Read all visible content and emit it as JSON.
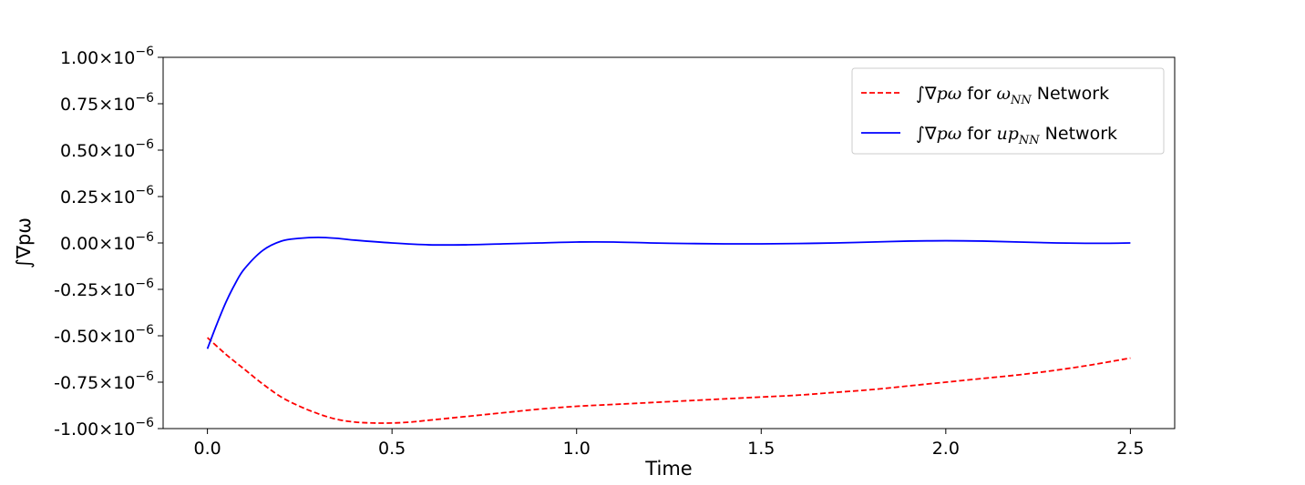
{
  "chart_data": {
    "type": "line",
    "title": "",
    "xlabel": "Time",
    "ylabel": "∫∇pω",
    "xlim": [
      -0.12,
      2.62
    ],
    "ylim": [
      -1.0,
      1.0
    ],
    "y_scale_note": "×10⁻⁶",
    "x_ticks": [
      0.0,
      0.5,
      1.0,
      1.5,
      2.0,
      2.5
    ],
    "x_tick_labels": [
      "0.0",
      "0.5",
      "1.0",
      "1.5",
      "2.0",
      "2.5"
    ],
    "y_ticks": [
      1.0,
      0.75,
      0.5,
      0.25,
      0.0,
      -0.25,
      -0.5,
      -0.75,
      -1.0
    ],
    "y_tick_labels": [
      {
        "base": "1.00×10",
        "exp": "−6"
      },
      {
        "base": "0.75×10",
        "exp": "−6"
      },
      {
        "base": "0.50×10",
        "exp": "−6"
      },
      {
        "base": "0.25×10",
        "exp": "−6"
      },
      {
        "base": "0.00×10",
        "exp": "−6"
      },
      {
        "base": "-0.25×10",
        "exp": "−6"
      },
      {
        "base": "-0.50×10",
        "exp": "−6"
      },
      {
        "base": "-0.75×10",
        "exp": "−6"
      },
      {
        "base": "-1.00×10",
        "exp": "−6"
      }
    ],
    "grid": false,
    "legend_position": "top-right",
    "series": [
      {
        "name": "∫∇pω for ωNN Network",
        "legend": {
          "pre": "∫∇",
          "math1": "pω",
          "mid": " for ",
          "math2": "ω",
          "sub": "NN",
          "post": " Network"
        },
        "color": "#ff0000",
        "dash": "dashed",
        "x": [
          0.0,
          0.05,
          0.1,
          0.15,
          0.2,
          0.25,
          0.3,
          0.35,
          0.4,
          0.45,
          0.5,
          0.55,
          0.6,
          0.7,
          0.8,
          0.9,
          1.0,
          1.1,
          1.2,
          1.3,
          1.4,
          1.5,
          1.6,
          1.7,
          1.8,
          1.9,
          2.0,
          2.1,
          2.2,
          2.3,
          2.4,
          2.5
        ],
        "y": [
          -0.51,
          -0.6,
          -0.68,
          -0.76,
          -0.83,
          -0.88,
          -0.92,
          -0.95,
          -0.965,
          -0.97,
          -0.97,
          -0.965,
          -0.955,
          -0.935,
          -0.915,
          -0.895,
          -0.88,
          -0.87,
          -0.86,
          -0.85,
          -0.84,
          -0.83,
          -0.82,
          -0.805,
          -0.79,
          -0.77,
          -0.75,
          -0.73,
          -0.71,
          -0.685,
          -0.655,
          -0.62
        ]
      },
      {
        "name": "∫∇pω for upNN Network",
        "legend": {
          "pre": "∫∇",
          "math1": "pω",
          "mid": " for ",
          "math2": "up",
          "sub": "NN",
          "post": " Network"
        },
        "color": "#0000ff",
        "dash": "solid",
        "x": [
          0.0,
          0.025,
          0.05,
          0.075,
          0.1,
          0.15,
          0.2,
          0.25,
          0.3,
          0.35,
          0.4,
          0.5,
          0.6,
          0.7,
          0.8,
          0.9,
          1.0,
          1.1,
          1.2,
          1.3,
          1.4,
          1.5,
          1.6,
          1.7,
          1.8,
          1.9,
          2.0,
          2.1,
          2.2,
          2.3,
          2.4,
          2.5
        ],
        "y": [
          -0.57,
          -0.44,
          -0.32,
          -0.22,
          -0.14,
          -0.04,
          0.01,
          0.025,
          0.03,
          0.025,
          0.015,
          0.0,
          -0.01,
          -0.01,
          -0.005,
          0.0,
          0.005,
          0.005,
          0.0,
          -0.003,
          -0.005,
          -0.005,
          -0.003,
          0.0,
          0.005,
          0.01,
          0.012,
          0.01,
          0.005,
          0.0,
          -0.002,
          0.0
        ]
      }
    ]
  }
}
